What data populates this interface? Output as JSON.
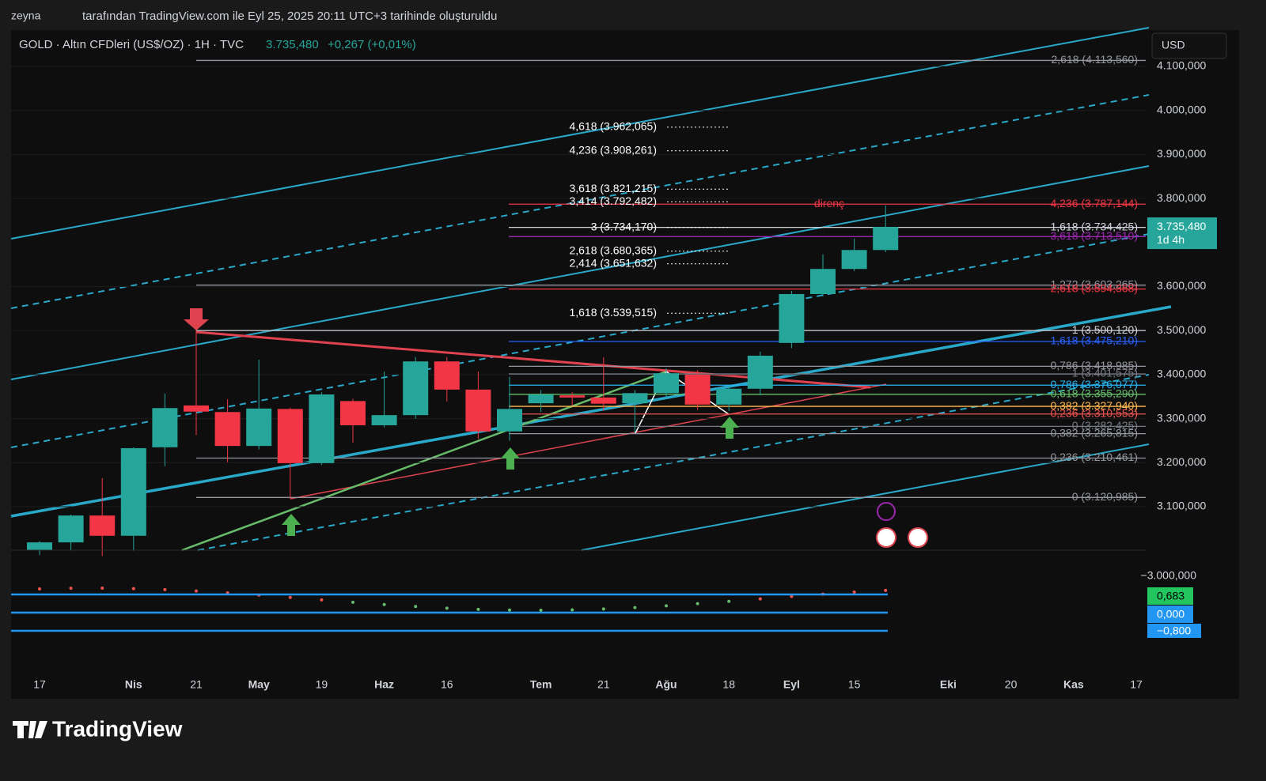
{
  "header": {
    "user": "zeyna",
    "credit": "tarafından TradingView.com ile Eyl 25, 2025 20:11 UTC+3 tarihinde oluşturuldu"
  },
  "chart_data": {
    "type": "candlestick",
    "symbol": "GOLD · Altın CFDleri (US$/OZ) · 1H · TVC",
    "last_price_label": "3.735,480",
    "change_label": "+0,267 (+0,01%)",
    "currency": "USD",
    "countdown": "1d 4h",
    "up_color": "#26a69a",
    "down_color": "#f23645",
    "categories": [
      "17",
      null,
      null,
      "Nis",
      null,
      "21",
      null,
      "May",
      null,
      "19",
      null,
      "Haz",
      null,
      "16",
      null,
      null,
      "Tem",
      null,
      "21",
      null,
      "Ağu",
      null,
      "18",
      null,
      "Eyl",
      null,
      "15",
      null,
      null,
      "Eki",
      null,
      "20",
      null,
      "Kas",
      null,
      "17"
    ],
    "open": [
      3001,
      3019,
      3080,
      3034,
      3235,
      3330,
      3315,
      3238,
      3322,
      3199,
      3340,
      3285,
      3308,
      3430,
      3366,
      3271,
      3335,
      3353,
      3348,
      3335,
      3358,
      3400,
      3332,
      3368,
      3472,
      3583,
      3640,
      3683,
      null,
      null,
      null,
      null,
      null,
      null,
      null,
      null
    ],
    "high": [
      3022,
      3082,
      3165,
      3235,
      3357,
      3500,
      3344,
      3434,
      3325,
      3360,
      3345,
      3407,
      3440,
      3440,
      3407,
      3395,
      3365,
      3360,
      3439,
      3365,
      3414,
      3410,
      3375,
      3452,
      3590,
      3673,
      3709,
      3784,
      null,
      null,
      null,
      null,
      null,
      null,
      null,
      null
    ],
    "low": [
      2990,
      3000,
      2988,
      3000,
      3192,
      3263,
      3201,
      3230,
      3118,
      3195,
      3245,
      3280,
      3300,
      3339,
      3254,
      3250,
      3315,
      3330,
      3318,
      3267,
      3350,
      3320,
      3317,
      3353,
      3460,
      3578,
      3635,
      3678,
      null,
      null,
      null,
      null,
      null,
      null,
      null,
      null
    ],
    "close": [
      3019,
      3080,
      3034,
      3233,
      3324,
      3316,
      3238,
      3323,
      3199,
      3355,
      3285,
      3308,
      3430,
      3366,
      3271,
      3322,
      3355,
      3348,
      3334,
      3358,
      3403,
      3332,
      3368,
      3443,
      3583,
      3640,
      3683,
      3735.48,
      null,
      null,
      null,
      null,
      null,
      null,
      null,
      null
    ],
    "ylim": [
      3001.3,
      4182.6
    ],
    "yticks": [
      {
        "value": 4100,
        "label": "4.100,000"
      },
      {
        "value": 4000,
        "label": "4.000,000"
      },
      {
        "value": 3900,
        "label": "3.900,000"
      },
      {
        "value": 3800,
        "label": "3.800,000"
      },
      {
        "value": 3600,
        "label": "3.600,000"
      },
      {
        "value": 3500,
        "label": "3.500,000"
      },
      {
        "value": 3400,
        "label": "3.400,000"
      },
      {
        "value": 3300,
        "label": "3.300,000"
      },
      {
        "value": 3200,
        "label": "3.200,000"
      },
      {
        "value": 3100,
        "label": "3.100,000"
      }
    ],
    "levels": [
      {
        "label": "2,618 (4.113,560)",
        "value": 4113.56,
        "color": "#9598a1"
      },
      {
        "label": "4,236 (3.787,144)",
        "value": 3787.144,
        "color": "#f23645"
      },
      {
        "label": "1,618 (3.734,425)",
        "value": 3734.425,
        "color": "#d1d4dc"
      },
      {
        "label": "3,618 (3.713,510)",
        "value": 3713.51,
        "color": "#9c27b0"
      },
      {
        "label": "1,272 (3.603,265)",
        "value": 3603.265,
        "color": "#9598a1"
      },
      {
        "label": "2,618 (3.594,368)",
        "value": 3594.368,
        "color": "#f23645"
      },
      {
        "label": "1 (3.500,120)",
        "value": 3500.12,
        "color": "#d1d4dc"
      },
      {
        "label": "1,618 (3.475,210)",
        "value": 3475.21,
        "color": "#2962ff"
      },
      {
        "label": "0,786 (3.418,985)",
        "value": 3418.985,
        "color": "#9598a1"
      },
      {
        "label": "1 (3.401,575)",
        "value": 3401.575,
        "color": "#787b86"
      },
      {
        "label": "0,786 (3.376,077)",
        "value": 3376.077,
        "color": "#29b6f6"
      },
      {
        "label": "0,618 (3.355,290)",
        "value": 3355.29,
        "color": "#66bb6a"
      },
      {
        "label": "0,382 (3.327,940)",
        "value": 3327.94,
        "color": "#ffb74d"
      },
      {
        "label": "0,236 (3.310,553)",
        "value": 3310.553,
        "color": "#ef5350"
      },
      {
        "label": "0 (3.282,425)",
        "value": 3282.425,
        "color": "#787b86"
      },
      {
        "label": "0,382 (3.265,815)",
        "value": 3265.815,
        "color": "#9598a1"
      },
      {
        "label": "0,236 (3.210,461)",
        "value": 3210.461,
        "color": "#9598a1"
      },
      {
        "label": "0 (3.120,985)",
        "value": 3120.985,
        "color": "#9598a1"
      }
    ],
    "ext_levels": [
      {
        "label": "4,618 (3.962,065)",
        "value": 3962.065
      },
      {
        "label": "4,236 (3.908,261)",
        "value": 3908.261
      },
      {
        "label": "3,618 (3.821,215)",
        "value": 3821.215
      },
      {
        "label": "3,414 (3.792,482)",
        "value": 3792.482
      },
      {
        "label": "3 (3.734,170)",
        "value": 3734.17
      },
      {
        "label": "2,618 (3.680,365)",
        "value": 3680.365
      },
      {
        "label": "2,414 (3.651,632)",
        "value": 3651.632
      },
      {
        "label": "1,618 (3.539,515)",
        "value": 3539.515
      }
    ],
    "annotation": "direnç",
    "oscillator": {
      "labels": [
        "0,683",
        "0,000",
        "−0,800"
      ],
      "axis_label": "−3.000,000"
    }
  },
  "footer": {
    "logo": "TradingView"
  }
}
